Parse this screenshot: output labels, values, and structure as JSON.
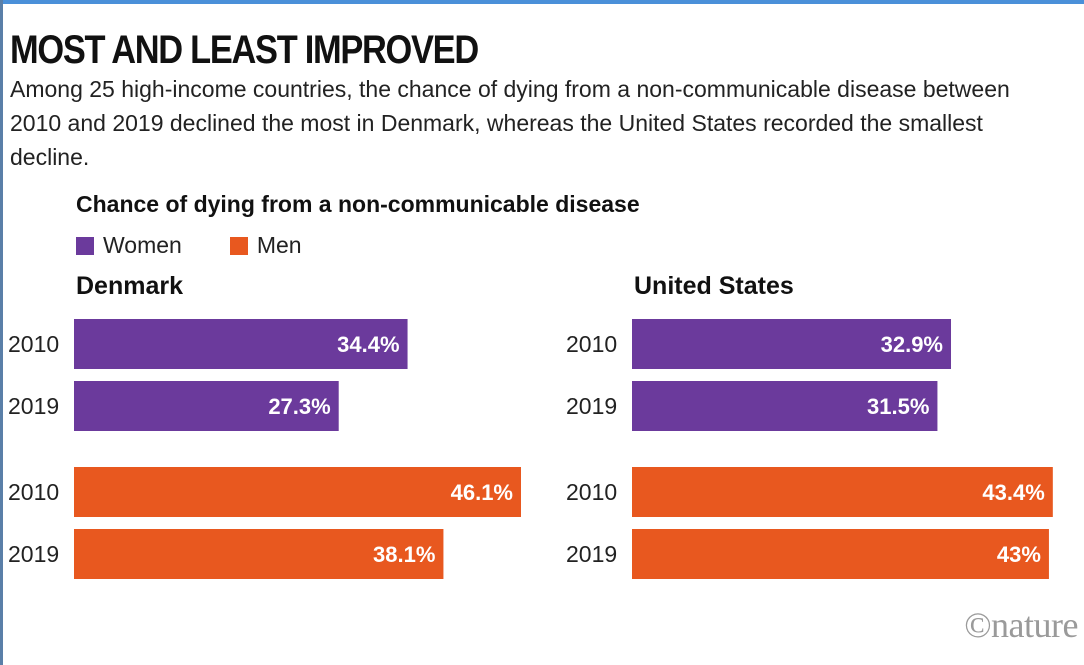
{
  "title": "MOST AND LEAST IMPROVED",
  "subtitle": "Among 25 high-income countries, the chance of dying from a non-communicable disease between 2010 and 2019 declined the most in Denmark, whereas the United States recorded the smallest decline.",
  "credit": "©nature",
  "chart_data": {
    "type": "bar",
    "orientation": "horizontal",
    "title": "Chance of dying from a non-communicable disease",
    "legend": [
      {
        "name": "Women",
        "color": "#6b3a9c"
      },
      {
        "name": "Men",
        "color": "#e8581f"
      }
    ],
    "xlim": [
      0,
      46.1
    ],
    "panels": [
      {
        "name": "Denmark",
        "rows": [
          {
            "group": "Women",
            "year": "2010",
            "value": 34.4,
            "label": "34.4%"
          },
          {
            "group": "Women",
            "year": "2019",
            "value": 27.3,
            "label": "27.3%"
          },
          {
            "group": "Men",
            "year": "2010",
            "value": 46.1,
            "label": "46.1%"
          },
          {
            "group": "Men",
            "year": "2019",
            "value": 38.1,
            "label": "38.1%"
          }
        ]
      },
      {
        "name": "United States",
        "rows": [
          {
            "group": "Women",
            "year": "2010",
            "value": 32.9,
            "label": "32.9%"
          },
          {
            "group": "Women",
            "year": "2019",
            "value": 31.5,
            "label": "31.5%"
          },
          {
            "group": "Men",
            "year": "2010",
            "value": 43.4,
            "label": "43.4%"
          },
          {
            "group": "Men",
            "year": "2019",
            "value": 43.0,
            "label": "43%"
          }
        ]
      }
    ]
  }
}
